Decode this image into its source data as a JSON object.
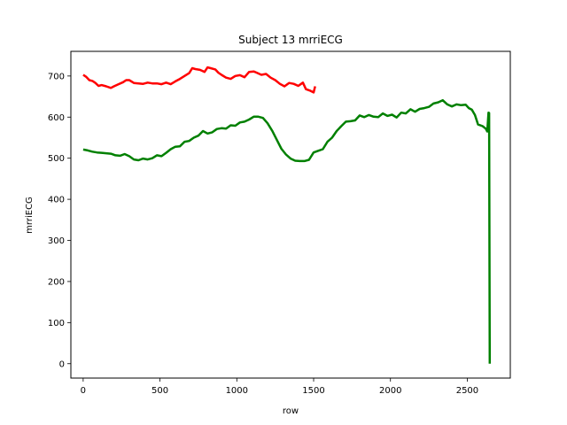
{
  "chart_data": {
    "type": "line",
    "title": "Subject 13 mrriECG",
    "xlabel": "row",
    "ylabel": "mrriECG",
    "xlim": [
      -80,
      2780
    ],
    "ylim": [
      -35,
      760
    ],
    "xticks": [
      0,
      500,
      1000,
      1500,
      2000,
      2500
    ],
    "yticks": [
      0,
      100,
      200,
      300,
      400,
      500,
      600,
      700
    ],
    "grid": false,
    "legend": "none",
    "series": [
      {
        "color": "#ff0000",
        "points": [
          [
            0,
            703
          ],
          [
            20,
            698
          ],
          [
            40,
            690
          ],
          [
            60,
            688
          ],
          [
            80,
            683
          ],
          [
            100,
            676
          ],
          [
            120,
            678
          ],
          [
            150,
            675
          ],
          [
            180,
            671
          ],
          [
            200,
            675
          ],
          [
            230,
            680
          ],
          [
            260,
            685
          ],
          [
            280,
            690
          ],
          [
            300,
            690
          ],
          [
            330,
            683
          ],
          [
            360,
            682
          ],
          [
            390,
            681
          ],
          [
            420,
            684
          ],
          [
            450,
            682
          ],
          [
            480,
            682
          ],
          [
            510,
            680
          ],
          [
            540,
            684
          ],
          [
            570,
            680
          ],
          [
            600,
            687
          ],
          [
            630,
            693
          ],
          [
            660,
            700
          ],
          [
            690,
            707
          ],
          [
            710,
            719
          ],
          [
            730,
            717
          ],
          [
            760,
            715
          ],
          [
            790,
            710
          ],
          [
            810,
            721
          ],
          [
            830,
            719
          ],
          [
            860,
            716
          ],
          [
            880,
            708
          ],
          [
            900,
            703
          ],
          [
            930,
            696
          ],
          [
            960,
            693
          ],
          [
            990,
            700
          ],
          [
            1020,
            702
          ],
          [
            1050,
            697
          ],
          [
            1080,
            710
          ],
          [
            1110,
            711
          ],
          [
            1130,
            708
          ],
          [
            1160,
            703
          ],
          [
            1190,
            705
          ],
          [
            1220,
            696
          ],
          [
            1250,
            690
          ],
          [
            1280,
            681
          ],
          [
            1310,
            675
          ],
          [
            1340,
            683
          ],
          [
            1370,
            681
          ],
          [
            1400,
            676
          ],
          [
            1430,
            684
          ],
          [
            1450,
            668
          ],
          [
            1480,
            664
          ],
          [
            1500,
            660
          ],
          [
            1510,
            675
          ]
        ]
      },
      {
        "color": "#008000",
        "points": [
          [
            0,
            521
          ],
          [
            30,
            519
          ],
          [
            60,
            516
          ],
          [
            90,
            514
          ],
          [
            120,
            513
          ],
          [
            150,
            512
          ],
          [
            180,
            511
          ],
          [
            210,
            507
          ],
          [
            240,
            506
          ],
          [
            270,
            510
          ],
          [
            300,
            505
          ],
          [
            330,
            497
          ],
          [
            360,
            495
          ],
          [
            390,
            499
          ],
          [
            420,
            497
          ],
          [
            450,
            500
          ],
          [
            480,
            507
          ],
          [
            510,
            505
          ],
          [
            540,
            513
          ],
          [
            570,
            522
          ],
          [
            600,
            528
          ],
          [
            630,
            529
          ],
          [
            660,
            540
          ],
          [
            690,
            542
          ],
          [
            720,
            550
          ],
          [
            750,
            555
          ],
          [
            780,
            566
          ],
          [
            810,
            560
          ],
          [
            840,
            563
          ],
          [
            870,
            571
          ],
          [
            900,
            573
          ],
          [
            930,
            572
          ],
          [
            960,
            580
          ],
          [
            990,
            579
          ],
          [
            1020,
            587
          ],
          [
            1050,
            589
          ],
          [
            1080,
            594
          ],
          [
            1110,
            601
          ],
          [
            1140,
            601
          ],
          [
            1170,
            598
          ],
          [
            1200,
            585
          ],
          [
            1230,
            567
          ],
          [
            1260,
            545
          ],
          [
            1290,
            523
          ],
          [
            1320,
            509
          ],
          [
            1350,
            499
          ],
          [
            1380,
            494
          ],
          [
            1410,
            493
          ],
          [
            1440,
            493
          ],
          [
            1470,
            496
          ],
          [
            1500,
            514
          ],
          [
            1530,
            518
          ],
          [
            1560,
            522
          ],
          [
            1590,
            540
          ],
          [
            1620,
            550
          ],
          [
            1650,
            566
          ],
          [
            1680,
            578
          ],
          [
            1710,
            589
          ],
          [
            1740,
            590
          ],
          [
            1770,
            592
          ],
          [
            1800,
            604
          ],
          [
            1830,
            600
          ],
          [
            1860,
            605
          ],
          [
            1890,
            601
          ],
          [
            1920,
            600
          ],
          [
            1950,
            609
          ],
          [
            1980,
            603
          ],
          [
            2010,
            606
          ],
          [
            2040,
            599
          ],
          [
            2070,
            611
          ],
          [
            2100,
            609
          ],
          [
            2130,
            619
          ],
          [
            2160,
            613
          ],
          [
            2190,
            620
          ],
          [
            2220,
            622
          ],
          [
            2250,
            625
          ],
          [
            2280,
            633
          ],
          [
            2310,
            636
          ],
          [
            2340,
            641
          ],
          [
            2370,
            631
          ],
          [
            2400,
            626
          ],
          [
            2430,
            631
          ],
          [
            2460,
            629
          ],
          [
            2490,
            630
          ],
          [
            2510,
            622
          ],
          [
            2530,
            618
          ],
          [
            2550,
            605
          ],
          [
            2570,
            582
          ],
          [
            2600,
            578
          ],
          [
            2620,
            572
          ],
          [
            2630,
            565
          ],
          [
            2638,
            611
          ],
          [
            2642,
            610
          ],
          [
            2646,
            0
          ]
        ]
      }
    ]
  }
}
